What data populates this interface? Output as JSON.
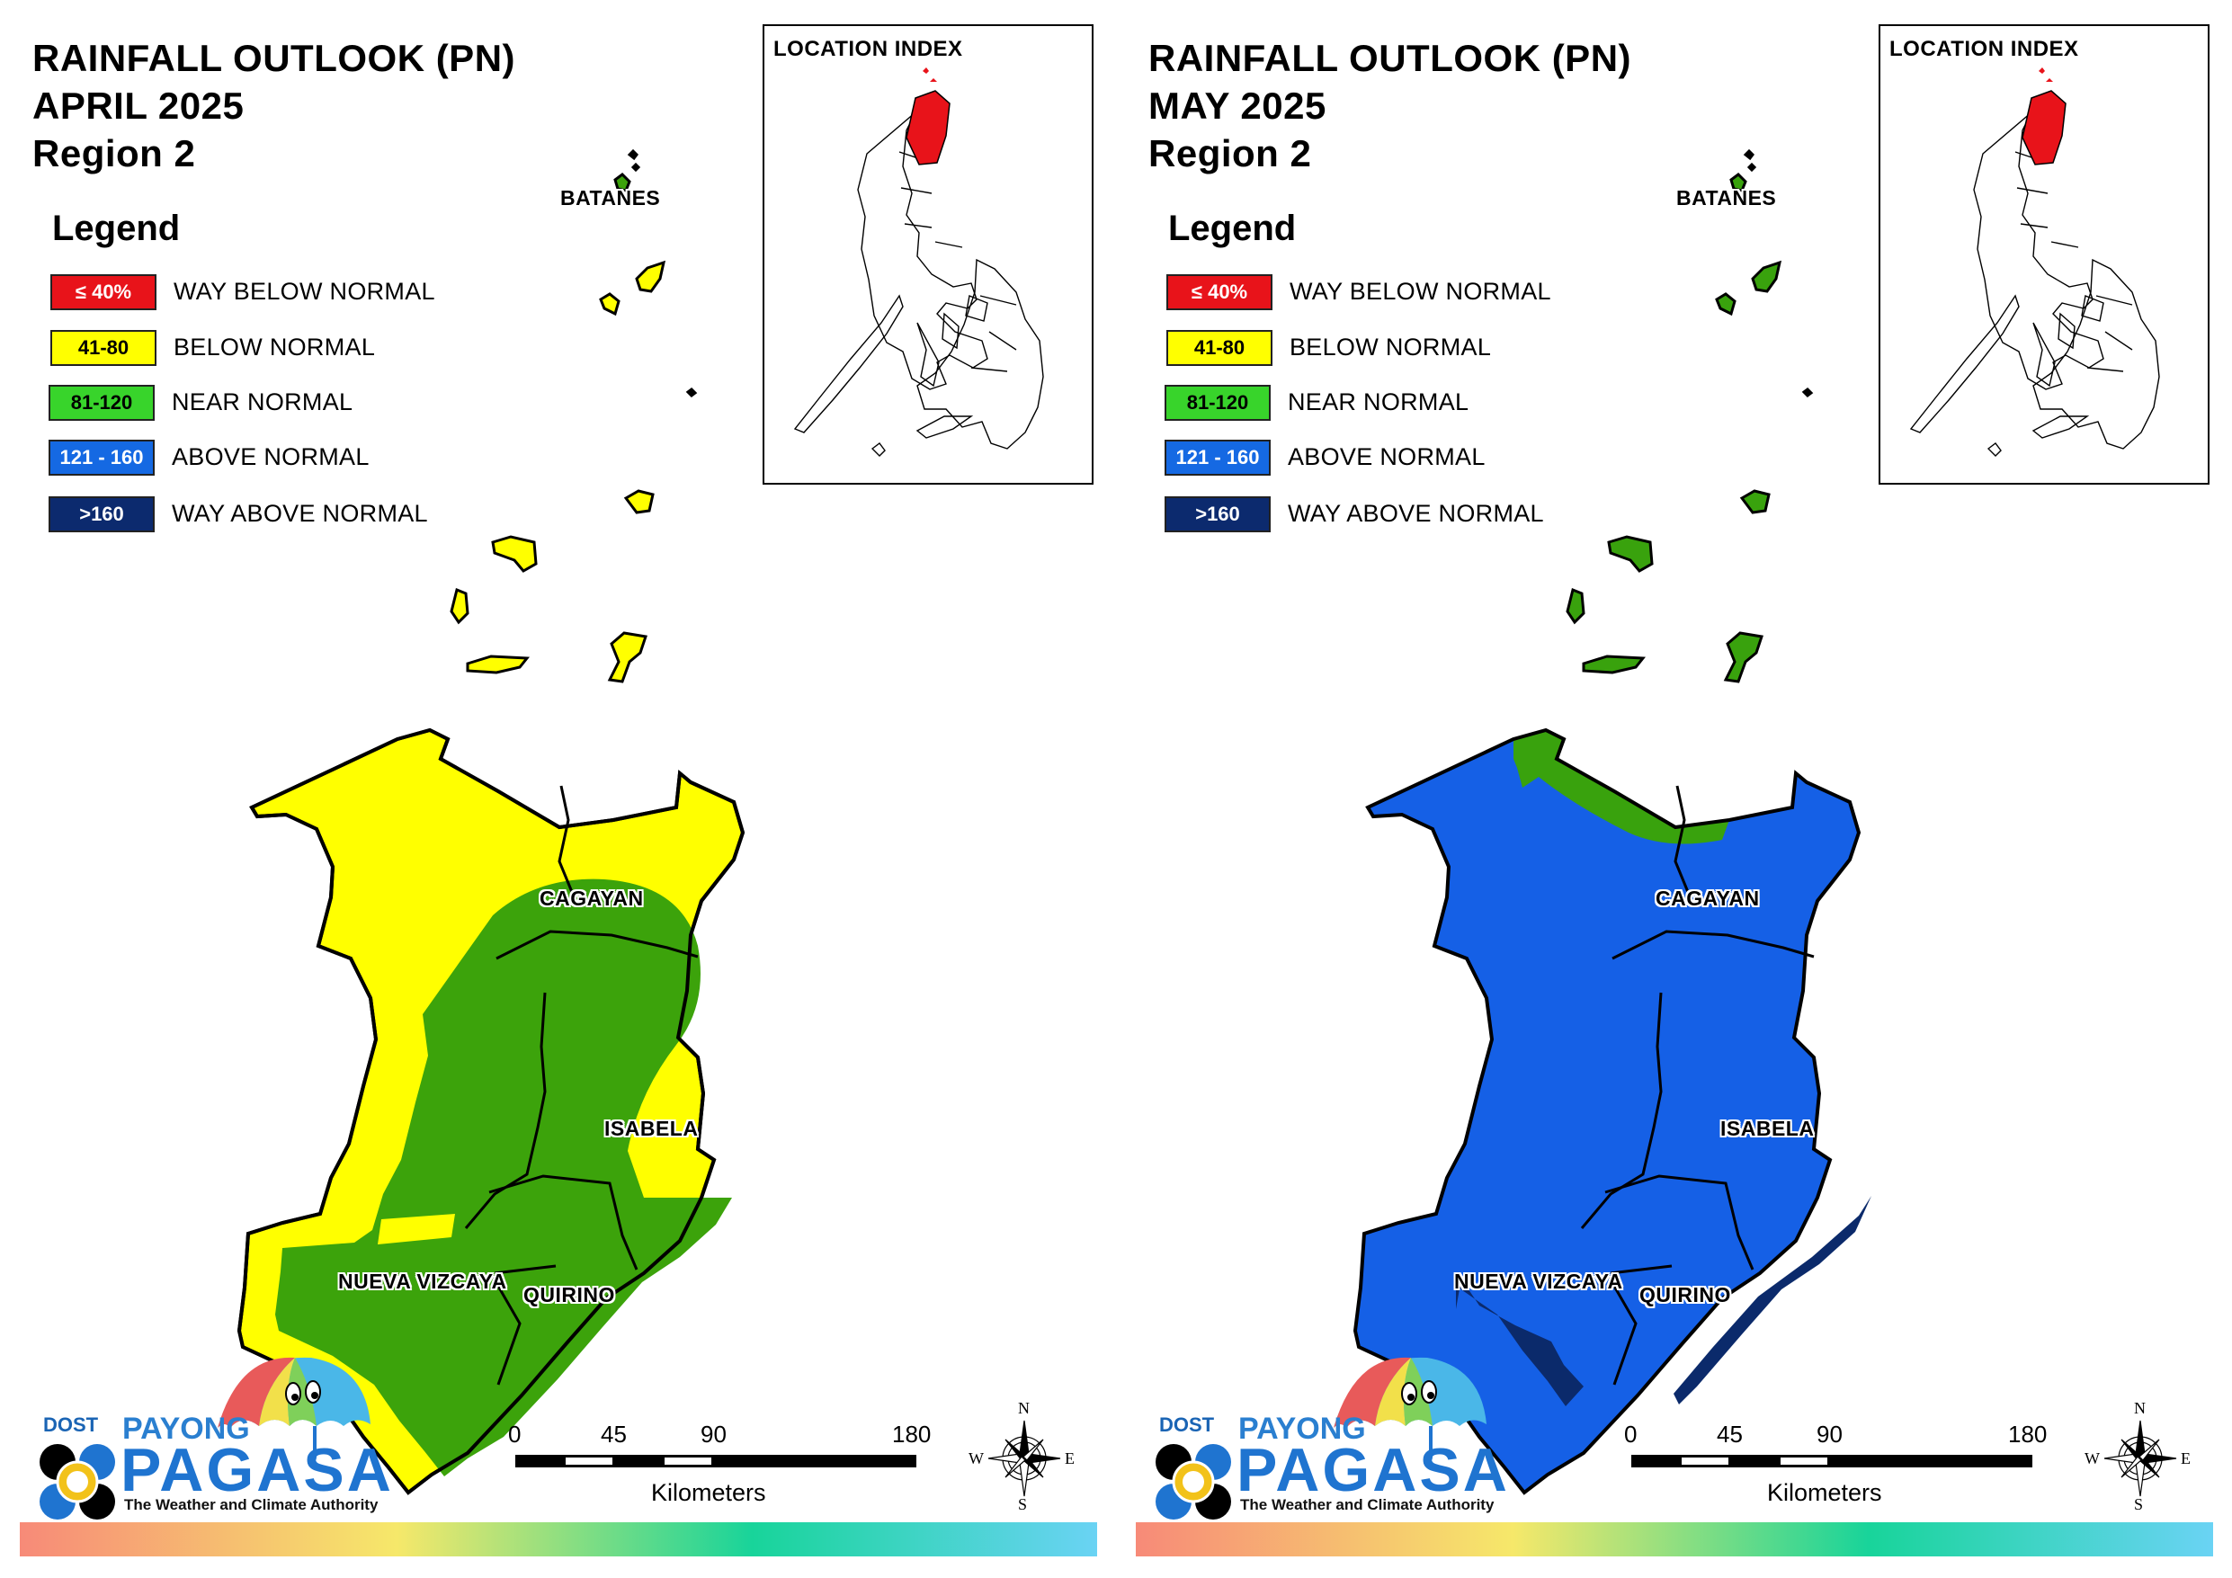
{
  "panels": [
    {
      "title_line1": "RAINFALL OUTLOOK (PN)",
      "title_line2": "APRIL 2025",
      "title_line3": "Region 2"
    },
    {
      "title_line1": "RAINFALL OUTLOOK (PN)",
      "title_line2": "MAY 2025",
      "title_line3": "Region 2"
    }
  ],
  "legend": {
    "title": "Legend",
    "items": [
      {
        "range": "≤ 40%",
        "label": "WAY BELOW NORMAL",
        "color": "#e8131a",
        "text_color": "#ffffff"
      },
      {
        "range": "41-80",
        "label": "BELOW NORMAL",
        "color": "#ffff00",
        "text_color": "#000000"
      },
      {
        "range": "81-120",
        "label": "NEAR NORMAL",
        "color": "#38d42b",
        "text_color": "#000000"
      },
      {
        "range": "121 - 160",
        "label": "ABOVE NORMAL",
        "color": "#1569e3",
        "text_color": "#ffffff"
      },
      {
        "range": ">160",
        "label": "WAY ABOVE NORMAL",
        "color": "#0c2a6e",
        "text_color": "#ffffff"
      }
    ]
  },
  "location_index": {
    "title": "LOCATION INDEX",
    "highlight_color": "#e8131a"
  },
  "provinces": {
    "batanes": "BATANES",
    "cagayan": "CAGAYAN",
    "isabela": "ISABELA",
    "nueva_vizcaya": "NUEVA VIZCAYA",
    "quirino": "QUIRINO"
  },
  "region_categories": {
    "april": {
      "batanes": "BELOW NORMAL",
      "cagayan": "BELOW NORMAL",
      "south_cagayan_isabela_west": "NEAR NORMAL",
      "isabela_east": "BELOW NORMAL",
      "nueva_vizcaya_north_strip": "BELOW NORMAL",
      "nueva_vizcaya": "NEAR NORMAL",
      "quirino": "NEAR NORMAL"
    },
    "may": {
      "batanes": "NEAR NORMAL",
      "cagayan_north_coast": "NEAR NORMAL",
      "cagayan": "ABOVE NORMAL",
      "isabela": "ABOVE NORMAL",
      "nueva_vizcaya": "ABOVE NORMAL",
      "quirino": "ABOVE NORMAL",
      "southwest_edge": "WAY ABOVE NORMAL",
      "southeast_coast": "WAY ABOVE NORMAL"
    }
  },
  "colors": {
    "april_yellow": "#ffff00",
    "april_green": "#3ca30b",
    "may_blue": "#1560e6",
    "may_green": "#39a20d",
    "may_darkblue": "#0b2a6b"
  },
  "scale_bar": {
    "ticks": [
      "0",
      "45",
      "90",
      "180"
    ],
    "unit": "Kilometers"
  },
  "compass": {
    "n": "N",
    "s": "S",
    "e": "E",
    "w": "W"
  },
  "logo": {
    "dost": "DOST",
    "payong": "PAYONG",
    "pagasa": "PAGASA",
    "tagline": "The Weather and Climate Authority"
  }
}
